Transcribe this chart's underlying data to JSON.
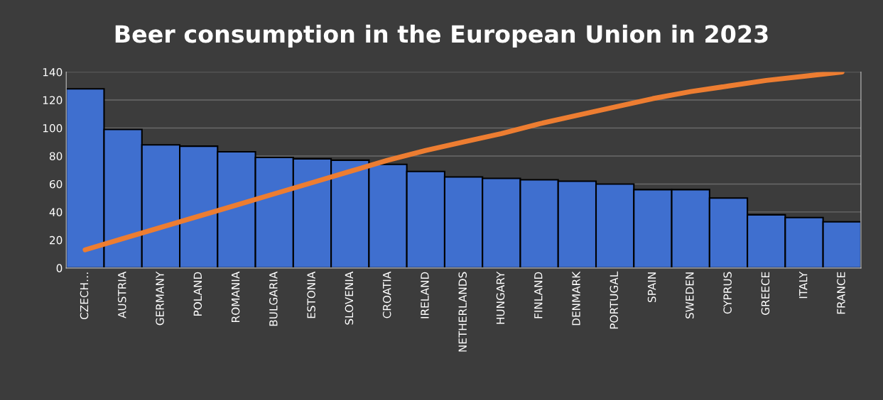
{
  "chart_data": {
    "type": "bar",
    "title": "Beer consumption in the European Union in 2023",
    "categories": [
      "CZECH…",
      "AUSTRIA",
      "GERMANY",
      "POLAND",
      "ROMANIA",
      "BULGARIA",
      "ESTONIA",
      "SLOVENIA",
      "CROATIA",
      "IRELAND",
      "NETHERLANDS",
      "HUNGARY",
      "FINLAND",
      "DENMARK",
      "PORTUGAL",
      "SPAIN",
      "SWEDEN",
      "CYPRUS",
      "GREECE",
      "ITALY",
      "FRANCE"
    ],
    "series": [
      {
        "color": "#3f6fcf",
        "values": [
          128,
          99,
          88,
          87,
          83,
          79,
          78,
          77,
          74,
          69,
          65,
          64,
          63,
          62,
          60,
          56,
          56,
          50,
          38,
          36,
          33
        ]
      },
      {
        "type": "line",
        "color": "#ed7d31",
        "values": [
          13,
          21,
          29,
          37,
          45,
          53,
          61,
          69,
          77,
          84,
          90,
          96,
          103,
          109,
          115,
          121,
          126,
          130,
          134,
          137,
          140
        ]
      }
    ],
    "ylim": [
      0,
      140
    ],
    "yticks": [
      0,
      20,
      40,
      60,
      80,
      100,
      120,
      140
    ],
    "grid": "y"
  }
}
